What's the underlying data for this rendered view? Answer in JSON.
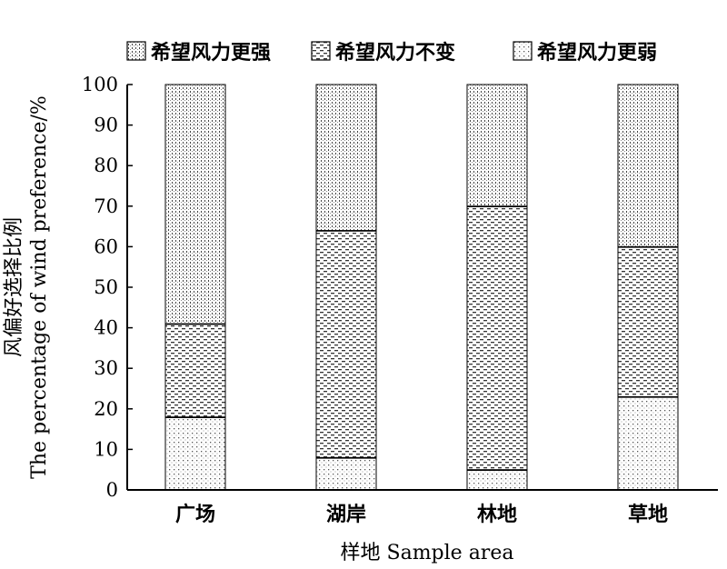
{
  "chart_data": {
    "type": "bar",
    "stacked": true,
    "categories": [
      "广场",
      "湖岸",
      "林地",
      "草地"
    ],
    "series": [
      {
        "name": "希望风力更弱",
        "values": [
          18,
          8,
          5,
          23
        ],
        "pattern": "dots"
      },
      {
        "name": "希望风力不变",
        "values": [
          23,
          56,
          65,
          37
        ],
        "pattern": "dashes"
      },
      {
        "name": "希望风力更强",
        "values": [
          59,
          36,
          30,
          40
        ],
        "pattern": "fine-dots"
      }
    ],
    "legend_order": [
      2,
      1,
      0
    ],
    "legend_position": "top",
    "ylim": [
      0,
      100
    ],
    "yticks": [
      0,
      10,
      20,
      30,
      40,
      50,
      60,
      70,
      80,
      90,
      100
    ],
    "xlabel": "样地 Sample area",
    "ylabel_line1": "风偏好选择比例",
    "ylabel_line2": "The percentage of wind preference/%",
    "grid": false
  }
}
